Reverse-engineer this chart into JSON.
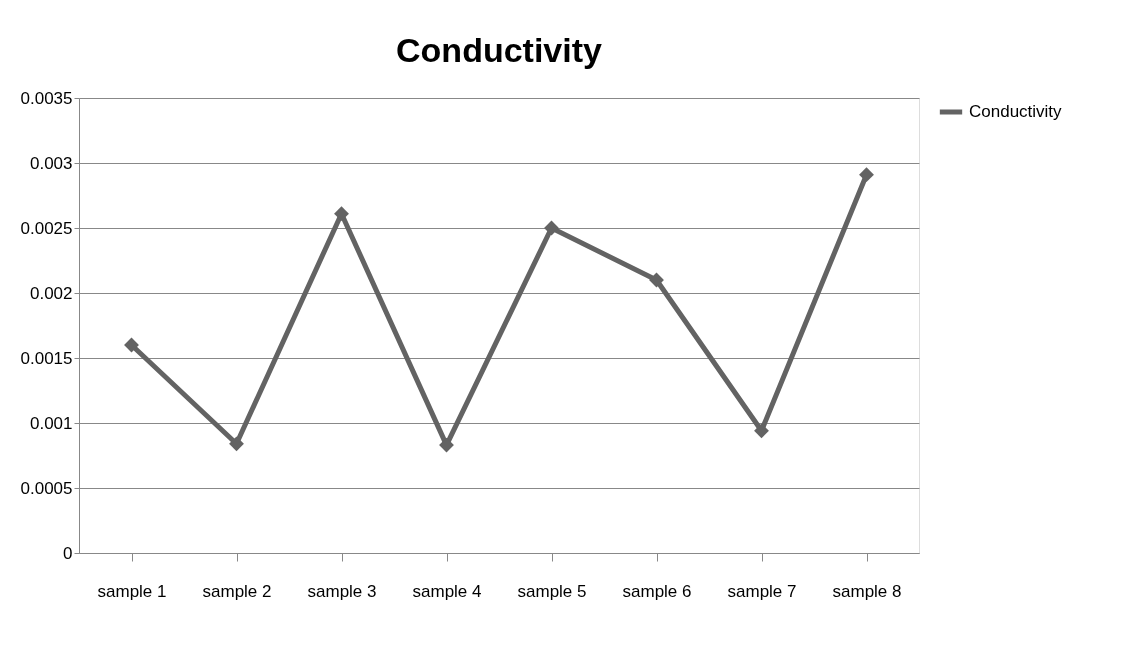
{
  "chart_data": {
    "type": "line",
    "title": "Conductivity",
    "categories": [
      "sample 1",
      "sample 2",
      "sample 3",
      "sample 4",
      "sample 5",
      "sample 6",
      "sample 7",
      "sample 8"
    ],
    "series": [
      {
        "name": "Conductivity",
        "color": "#636363",
        "values": [
          0.0016,
          0.00084,
          0.00261,
          0.00083,
          0.0025,
          0.0021,
          0.00094,
          0.00291
        ]
      }
    ],
    "ylim": [
      0,
      0.0035
    ],
    "yticks": [
      0,
      0.0005,
      0.001,
      0.0015,
      0.002,
      0.0025,
      0.003,
      0.0035
    ],
    "grid": "y",
    "legend": "right",
    "marker": "diamond",
    "line_style": "solid"
  }
}
